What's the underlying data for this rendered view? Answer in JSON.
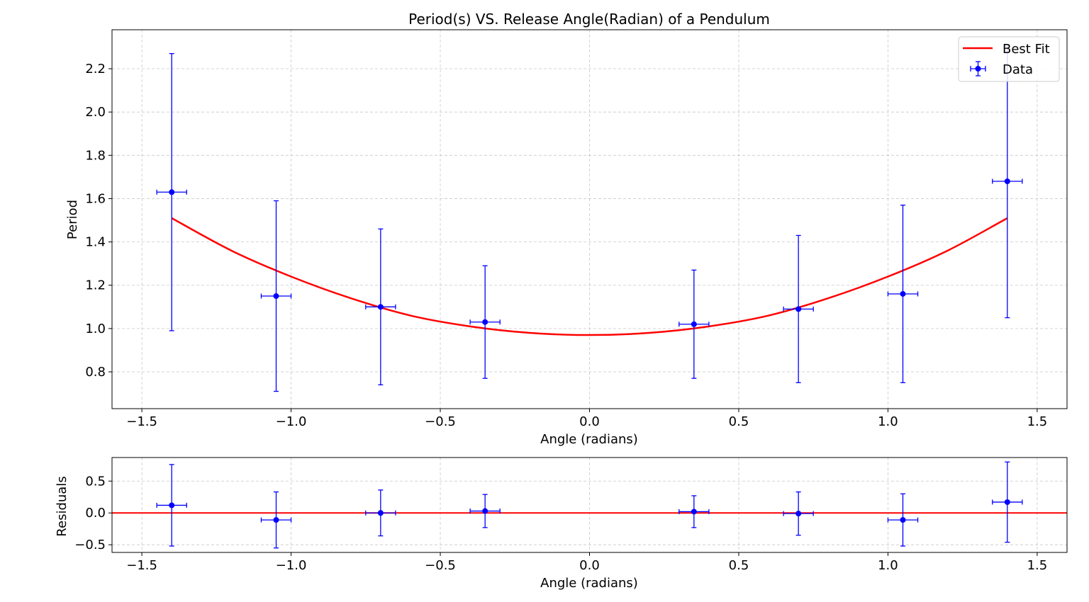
{
  "chart_data": [
    {
      "type": "scatter",
      "title": "Period(s) VS. Release Angle(Radian) of a Pendulum",
      "xlabel": "Angle (radians)",
      "ylabel": "Period",
      "xlim": [
        -1.6,
        1.6
      ],
      "ylim": [
        0.63,
        2.38
      ],
      "xticks": [
        -1.5,
        -1.0,
        -0.5,
        0.0,
        0.5,
        1.0,
        1.5
      ],
      "xtick_labels": [
        "−1.5",
        "−1.0",
        "−0.5",
        "0.0",
        "0.5",
        "1.0",
        "1.5"
      ],
      "yticks": [
        0.8,
        1.0,
        1.2,
        1.4,
        1.6,
        1.8,
        2.0,
        2.2
      ],
      "ytick_labels": [
        "0.8",
        "1.0",
        "1.2",
        "1.4",
        "1.6",
        "1.8",
        "2.0",
        "2.2"
      ],
      "grid": true,
      "legend": "top-right",
      "series": [
        {
          "name": "Data",
          "kind": "errorbar",
          "color": "#0000ff",
          "x": [
            -1.4,
            -1.05,
            -0.7,
            -0.35,
            0.35,
            0.7,
            1.05,
            1.4
          ],
          "y": [
            1.63,
            1.15,
            1.1,
            1.03,
            1.02,
            1.09,
            1.16,
            1.68
          ],
          "yerr": [
            0.64,
            0.44,
            0.36,
            0.26,
            0.25,
            0.34,
            0.41,
            0.63
          ],
          "xerr": [
            0.05,
            0.05,
            0.05,
            0.05,
            0.05,
            0.05,
            0.05,
            0.05
          ]
        },
        {
          "name": "Best Fit",
          "kind": "line",
          "color": "#ff0000",
          "x": [
            -1.4,
            -1.2,
            -1.0,
            -0.8,
            -0.6,
            -0.4,
            -0.2,
            0.0,
            0.2,
            0.4,
            0.6,
            0.8,
            1.0,
            1.2,
            1.4
          ],
          "y": [
            1.51,
            1.36,
            1.24,
            1.14,
            1.06,
            1.01,
            0.98,
            0.97,
            0.98,
            1.01,
            1.06,
            1.14,
            1.24,
            1.36,
            1.51
          ]
        }
      ]
    },
    {
      "type": "scatter",
      "title": "",
      "xlabel": "Angle (radians)",
      "ylabel": "Residuals",
      "xlim": [
        -1.6,
        1.6
      ],
      "ylim": [
        -0.62,
        0.87
      ],
      "xticks": [
        -1.5,
        -1.0,
        -0.5,
        0.0,
        0.5,
        1.0,
        1.5
      ],
      "xtick_labels": [
        "−1.5",
        "−1.0",
        "−0.5",
        "0.0",
        "0.5",
        "1.0",
        "1.5"
      ],
      "yticks": [
        -0.5,
        0.0,
        0.5
      ],
      "ytick_labels": [
        "−0.5",
        "0.0",
        "0.5"
      ],
      "grid": true,
      "series": [
        {
          "name": "",
          "kind": "errorbar",
          "color": "#0000ff",
          "x": [
            -1.4,
            -1.05,
            -0.7,
            -0.35,
            0.35,
            0.7,
            1.05,
            1.4
          ],
          "y": [
            0.12,
            -0.11,
            0.0,
            0.03,
            0.02,
            -0.01,
            -0.11,
            0.17
          ],
          "yerr": [
            0.64,
            0.44,
            0.36,
            0.26,
            0.25,
            0.34,
            0.41,
            0.63
          ],
          "xerr": [
            0.05,
            0.05,
            0.05,
            0.05,
            0.05,
            0.05,
            0.05,
            0.05
          ]
        },
        {
          "name": "",
          "kind": "hline",
          "color": "#ff0000",
          "y": 0.0
        }
      ]
    }
  ]
}
